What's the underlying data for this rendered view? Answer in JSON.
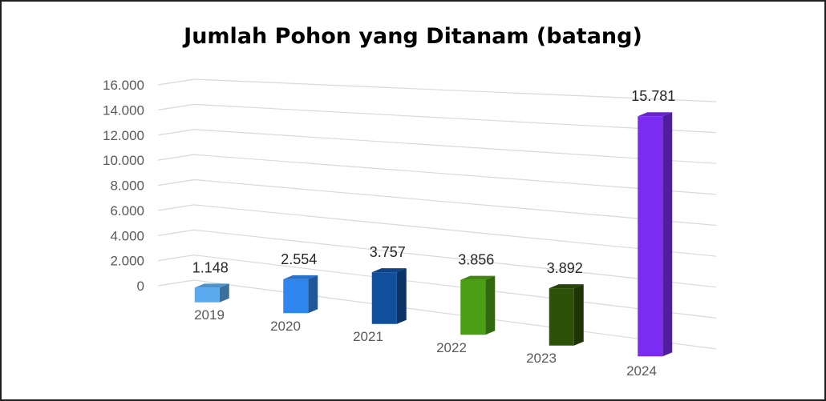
{
  "chart_data": {
    "type": "bar",
    "title": "Jumlah Pohon yang Ditanam (batang)",
    "categories": [
      "2019",
      "2020",
      "2021",
      "2022",
      "2023",
      "2024"
    ],
    "values": [
      1148,
      2554,
      3757,
      3856,
      3892,
      15781
    ],
    "data_labels": [
      "1.148",
      "2.554",
      "3.757",
      "3.856",
      "3.892",
      "15.781"
    ],
    "y_ticks": [
      0,
      2000,
      4000,
      6000,
      8000,
      10000,
      12000,
      14000,
      16000
    ],
    "y_tick_labels": [
      "0",
      "2.000",
      "4.000",
      "6.000",
      "8.000",
      "10.000",
      "12.000",
      "14.000",
      "16.000"
    ],
    "ylim": [
      0,
      16000
    ],
    "xlabel": "",
    "ylabel": "",
    "grid": true,
    "legend": "none",
    "style": "3d-column",
    "colors": [
      "#5aaaf0",
      "#2f86ef",
      "#114f9c",
      "#4c9f15",
      "#2d5108",
      "#7a2cf2"
    ]
  }
}
